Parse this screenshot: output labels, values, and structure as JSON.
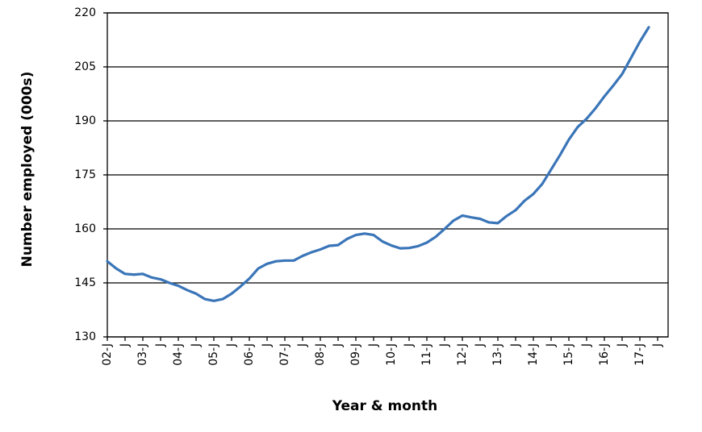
{
  "chart_data": {
    "type": "line",
    "y_label": "Number employed (000s)",
    "x_label": "Year & month",
    "categories": [
      "02-J",
      null,
      "J",
      null,
      "03-J",
      null,
      "J",
      null,
      "04-J",
      null,
      "J",
      null,
      "05-J",
      null,
      "J",
      null,
      "06-J",
      null,
      "J",
      null,
      "07-J",
      null,
      "J",
      null,
      "08-J",
      null,
      "J",
      null,
      "09-J",
      null,
      "J",
      null,
      "10-J",
      null,
      "J",
      null,
      "11-J",
      null,
      "J",
      null,
      "12-J",
      null,
      "J",
      null,
      "13-J",
      null,
      "J",
      null,
      "14-J",
      null,
      "J",
      null,
      "15-J",
      null,
      "J",
      null,
      "16-J",
      null,
      "J",
      null,
      "17-J",
      null,
      "J"
    ],
    "series": [
      {
        "color": "#3a75b8",
        "values": [
          151,
          149,
          147.5,
          147.3,
          147.5,
          146.5,
          146,
          145,
          144.2,
          143,
          142,
          140.5,
          140,
          140.5,
          142,
          144,
          146.2,
          149,
          150.3,
          151,
          151.2,
          151.2,
          152.5,
          153.5,
          154.3,
          155.3,
          155.5,
          157.2,
          158.3,
          158.7,
          158.3,
          156.5,
          155.4,
          154.6,
          154.7,
          155.2,
          156.2,
          157.8,
          160,
          162.3,
          163.7,
          163.2,
          162.8,
          161.8,
          161.6,
          163.6,
          165.2,
          167.8,
          169.7,
          172.5,
          176.5,
          180.5,
          184.8,
          188.3,
          190.6,
          193.5,
          196.8,
          199.8,
          203,
          207.5,
          212,
          216,
          null
        ]
      }
    ],
    "ylim": [
      130,
      220
    ],
    "yticks": [
      130,
      145,
      160,
      175,
      190,
      205,
      220
    ],
    "grid": true
  }
}
